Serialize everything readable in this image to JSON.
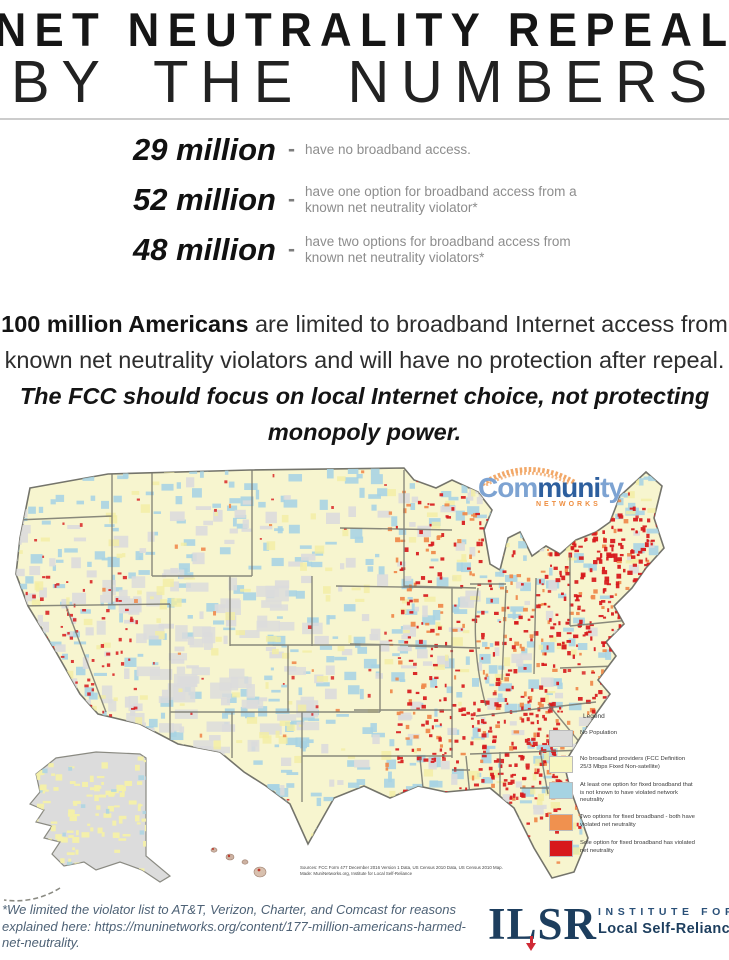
{
  "title": {
    "line1": "NET NEUTRALITY REPEAL",
    "line2": "BY THE NUMBERS"
  },
  "stats": [
    {
      "number": "29 million",
      "dash": "-",
      "description": "have no broadband access."
    },
    {
      "number": "52 million",
      "dash": "-",
      "description": "have one option for broadband access from a known net neutrality violator*"
    },
    {
      "number": "48 million",
      "dash": "-",
      "description": "have two options for broadband access from known net neutrality violators*"
    }
  ],
  "summary": {
    "bold_lead": "100 million Americans",
    "normal_text": " are limited to broadband Internet access from known net neutrality violators and will have no protection after repeal. ",
    "bold_italic_text": "The FCC should focus on local Internet choice, not protecting monopoly power."
  },
  "map": {
    "community_logo": {
      "com": "Com",
      "muni": "muni",
      "ty": "ty",
      "networks": "NETWORKS"
    },
    "source_note_1": "Sources: FCC Form 477 December 2016 Version 1 Data, US Census 2010 Data, US Census 2010 Map.",
    "source_note_2": "Made: MuniNetworks.org, Institute for Local Self-Reliance",
    "legend": {
      "title": "Legend",
      "items": [
        {
          "color": "#d9d9d9",
          "label": "No Population"
        },
        {
          "color": "#f8f6c2",
          "label": "No broadband providers (FCC Definition 25/3 Mbps Fixed Non-satellite)"
        },
        {
          "color": "#a6d3e2",
          "label": "At least one option for fixed broadband that is not known to have violated network neutrality"
        },
        {
          "color": "#f0914f",
          "label": "Two options for fixed broadband - both have violated net neutrality"
        },
        {
          "color": "#d7191c",
          "label": "Sole option for fixed broadband has violated net neutrality"
        }
      ]
    },
    "colors": {
      "base": "#f7f5cf",
      "yellow_speckle": "#f3eea3",
      "blue": "#a9d4e3",
      "gray": "#dcdcdc",
      "orange": "#ef8a4c",
      "red": "#d7191c",
      "border": "#74746b",
      "no_pop": "#d9d9d9"
    }
  },
  "footnote": "*We limited the violator list to AT&T, Verizon, Charter, and Comcast for reasons explained here: https://muninetworks.org/content/177-million-americans-harmed-net-neutrality.",
  "ilsr_logo": {
    "acronym": "ILSR",
    "line1": "INSTITUTE FOR",
    "line2": "Local Self-Reliance"
  }
}
